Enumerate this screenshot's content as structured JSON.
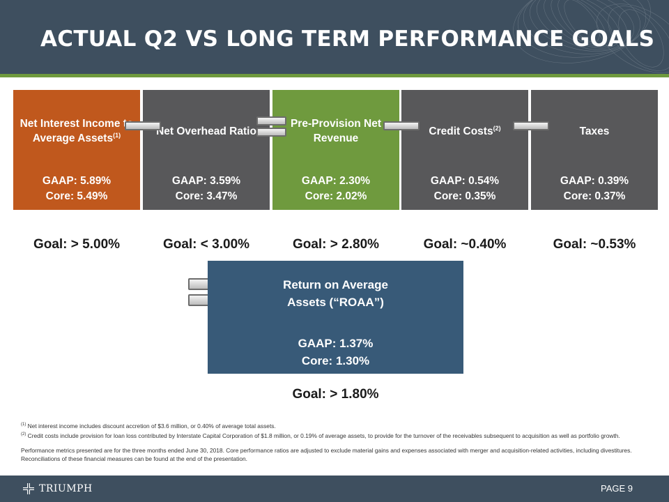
{
  "title": "ACTUAL Q2 VS LONG TERM PERFORMANCE GOALS",
  "colors": {
    "header": "#3e4f5f",
    "accent_rule": "#6f9a3e",
    "orange": "#c0581d",
    "gray": "#58585a",
    "green": "#6f9a3e",
    "blue": "#385a78"
  },
  "metrics": [
    {
      "name": "Net Interest Income to Average Assets",
      "note": "(1)",
      "gaap": "GAAP: 5.89%",
      "core": "Core: 5.49%",
      "goal": "Goal: > 5.00%",
      "color": "#c0581d"
    },
    {
      "name": "Net Overhead Ratio",
      "note": "",
      "gaap": "GAAP: 3.59%",
      "core": "Core: 3.47%",
      "goal": "Goal: < 3.00%",
      "color": "#58585a"
    },
    {
      "name": "Pre-Provision Net Revenue",
      "note": "",
      "gaap": "GAAP: 2.30%",
      "core": "Core: 2.02%",
      "goal": "Goal: > 2.80%",
      "color": "#6f9a3e"
    },
    {
      "name": "Credit Costs",
      "note": "(2)",
      "gaap": "GAAP: 0.54%",
      "core": "Core: 0.35%",
      "goal": "Goal: ~0.40%",
      "color": "#58585a"
    },
    {
      "name": "Taxes",
      "note": "",
      "gaap": "GAAP: 0.39%",
      "core": "Core: 0.37%",
      "goal": "Goal: ~0.53%",
      "color": "#58585a"
    }
  ],
  "connectors": [
    "minus-sign-icon",
    "minus-sign-icon",
    "plus-sign-icon",
    "minus-sign-icon",
    "minus-sign-icon",
    "equals-sign-icon"
  ],
  "roaa": {
    "name_line1": "Return on Average",
    "name_line2": "Assets (“ROAA”)",
    "gaap": "GAAP: 1.37%",
    "core": "Core: 1.30%",
    "goal": "Goal: > 1.80%"
  },
  "footnotes": [
    {
      "mark": "(1)",
      "text": "Net interest income includes discount accretion of $3.6 million, or 0.40% of average total assets."
    },
    {
      "mark": "(2)",
      "text": "Credit costs include provision for loan loss contributed by Interstate Capital Corporation of $1.8 million, or 0.19% of average assets, to provide for the turnover of the receivables subsequent to acquisition as well as portfolio growth."
    }
  ],
  "performance_note": "Performance metrics presented are for the three months ended June 30, 2018. Core performance ratios are adjusted to exclude material gains and expenses associated with merger and acquisition-related activities, including divestitures. Reconciliations of these financial measures can be found at the end of the presentation.",
  "footer": {
    "logo_text": "TRIUMPH",
    "logo_icon": "cross-icon",
    "page_label": "PAGE 9"
  }
}
